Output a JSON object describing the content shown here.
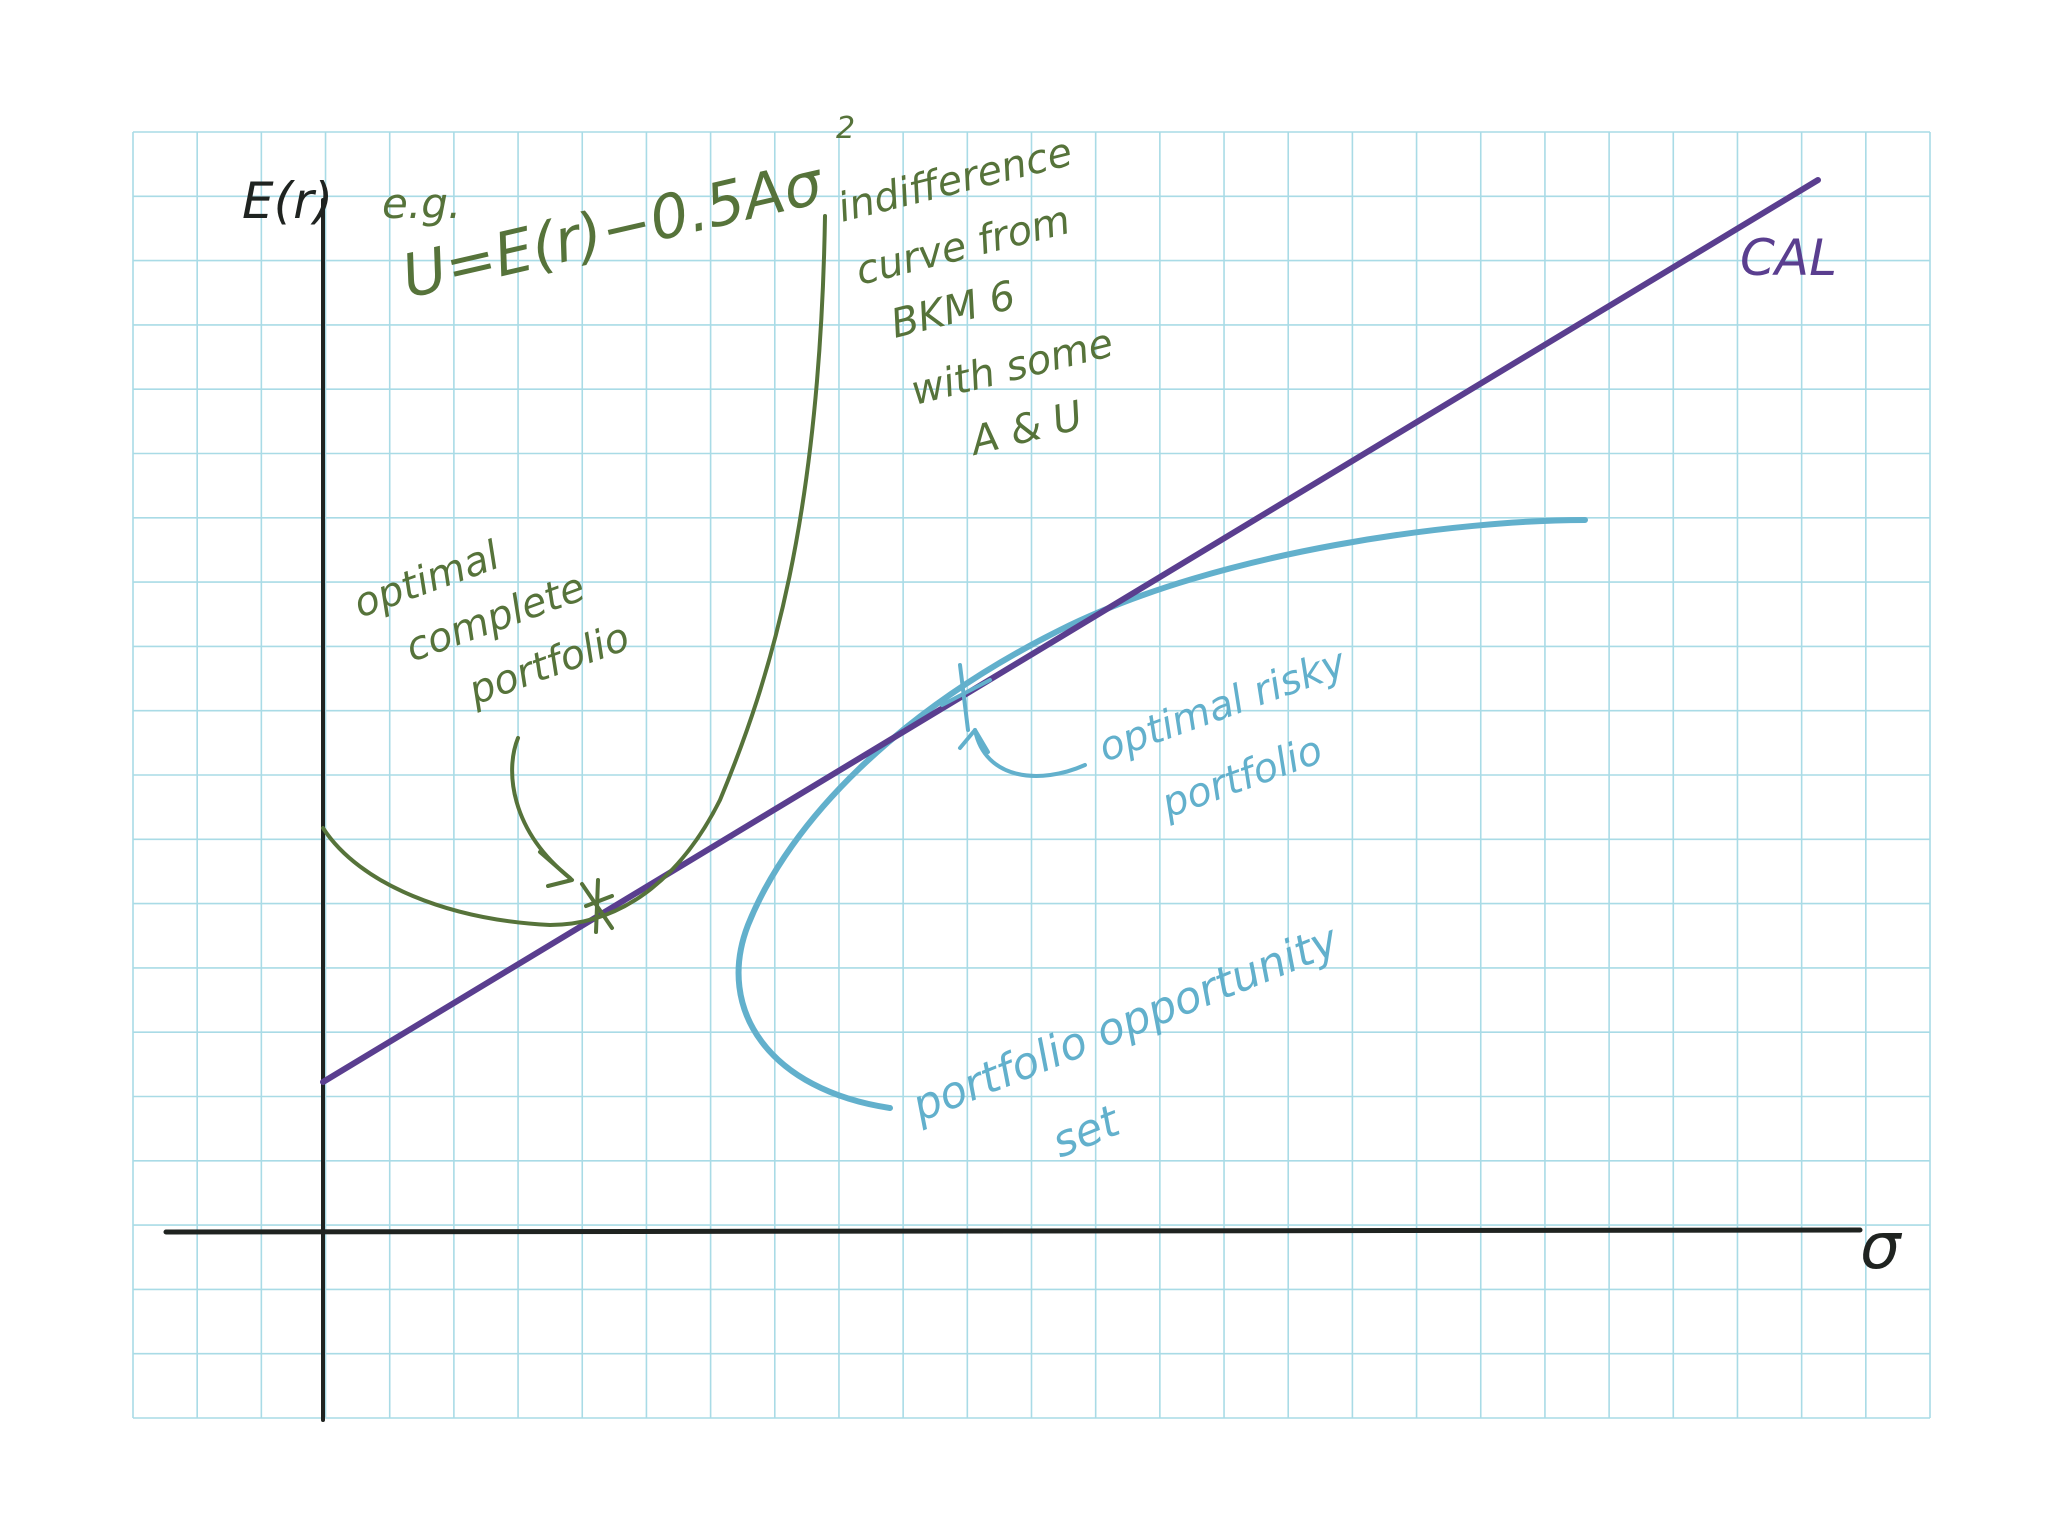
{
  "axes": {
    "y_label": "E(r)",
    "x_label": "σ"
  },
  "labels": {
    "cal": "CAL",
    "utility_prefix": "e.g.",
    "utility_formula": "U=E(r)−0.5Aσ",
    "utility_exponent": "2",
    "indifference": [
      "indifference",
      "curve from",
      "BKM 6",
      "with some",
      "A & U"
    ],
    "optimal_complete": [
      "optimal",
      "complete",
      "portfolio"
    ],
    "optimal_risky": [
      "optimal risky",
      "portfolio"
    ],
    "opportunity_set": [
      "portfolio opportunity",
      "set"
    ]
  },
  "colors": {
    "grid": "#a9dbe6",
    "axis": "#1f2320",
    "cal": "#5a3e8f",
    "indifference": "#56733a",
    "opportunity_set": "#62b0cc"
  }
}
